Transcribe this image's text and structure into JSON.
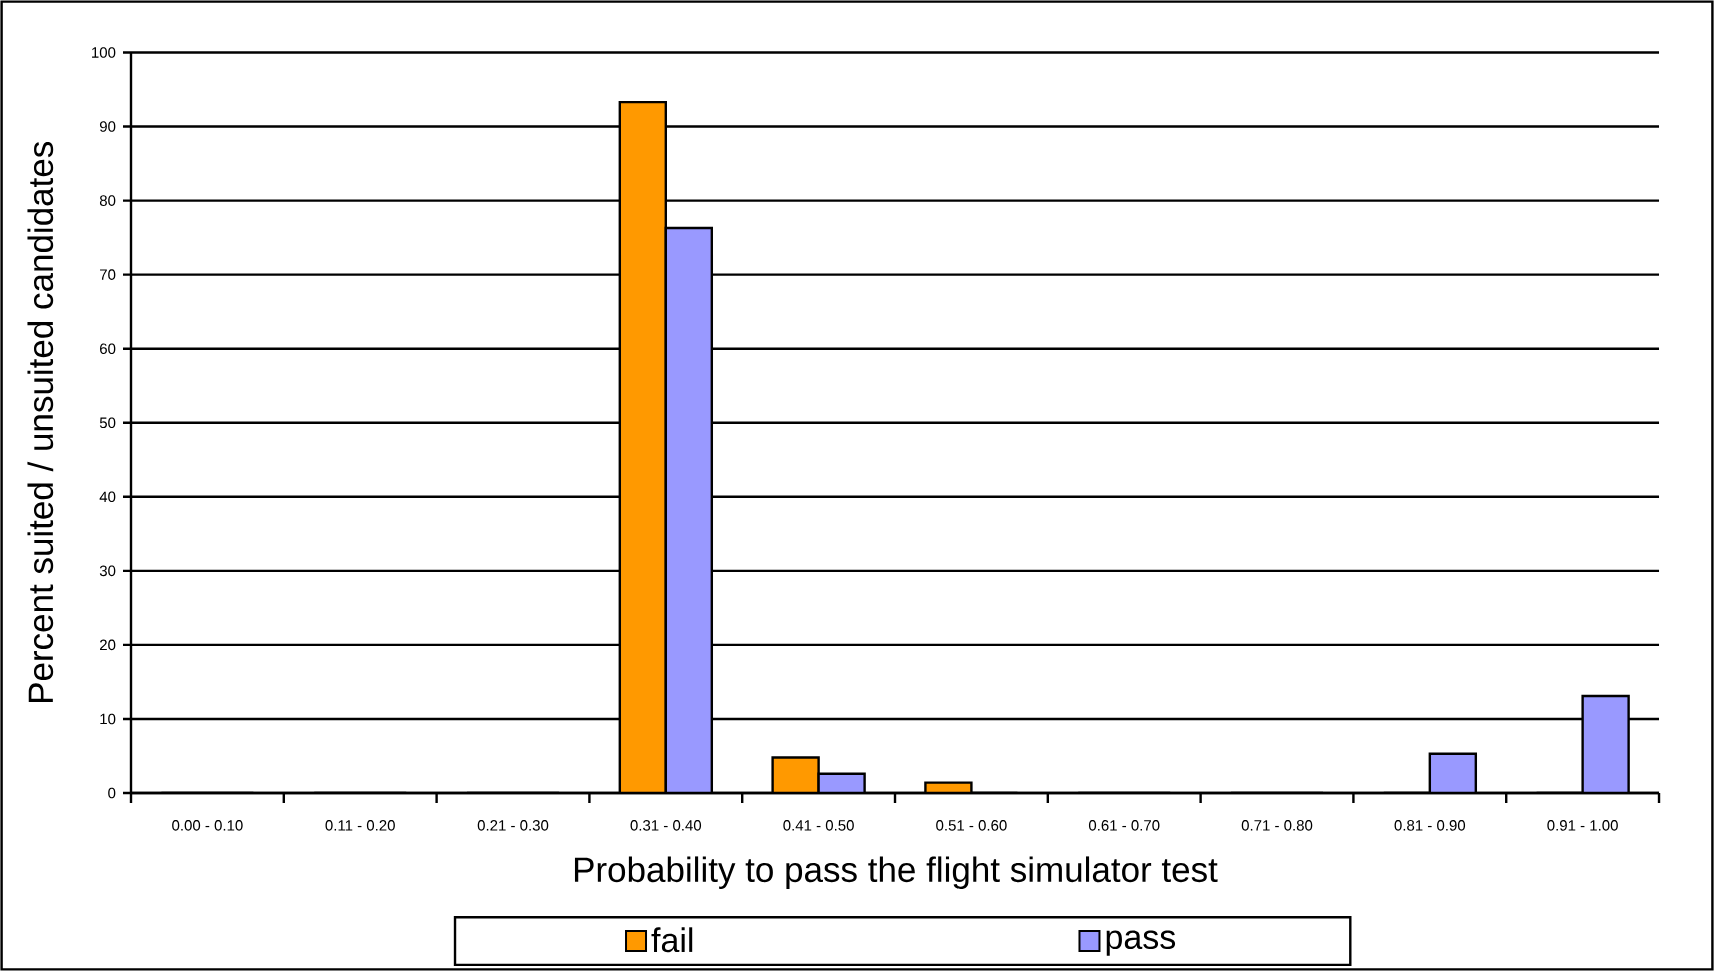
{
  "chart_data": {
    "type": "bar",
    "xlabel": "Probability to pass the flight simulator test",
    "ylabel": "Percent suited / unsuited candidates",
    "categories": [
      "0.00 - 0.10",
      "0.11 - 0.20",
      "0.21 - 0.30",
      "0.31 - 0.40",
      "0.41 - 0.50",
      "0.51 - 0.60",
      "0.61 - 0.70",
      "0.71 - 0.80",
      "0.81 - 0.90",
      "0.91 - 1.00"
    ],
    "series": [
      {
        "name": "fail",
        "color": "#ff9900",
        "values": [
          0,
          0,
          0,
          93.3,
          4.8,
          1.4,
          0,
          0,
          0,
          0
        ]
      },
      {
        "name": "pass",
        "color": "#9999ff",
        "values": [
          0,
          0,
          0,
          76.3,
          2.6,
          0,
          0,
          0,
          5.3,
          13.1
        ]
      }
    ],
    "ylim": [
      0,
      100
    ],
    "yticks": [
      0,
      10,
      20,
      30,
      40,
      50,
      60,
      70,
      80,
      90,
      100
    ],
    "grid": "y",
    "legend": "bottom"
  }
}
